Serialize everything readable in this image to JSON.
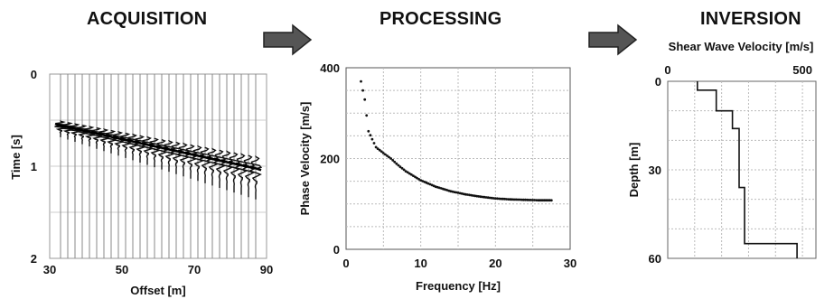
{
  "stages": [
    {
      "title": "ACQUISITION"
    },
    {
      "title": "PROCESSING"
    },
    {
      "title": "INVERSION"
    }
  ],
  "arrow_color": "#555555",
  "chart_data": [
    {
      "type": "scatter",
      "title": "",
      "xlabel": "Offset [m]",
      "ylabel": "Time [s]",
      "xlim": [
        30,
        90
      ],
      "ylim": [
        2,
        0
      ],
      "x_ticks": [
        "30",
        "50",
        "70",
        "90"
      ],
      "y_ticks": [
        "0",
        "1",
        "2"
      ],
      "traces": {
        "count": 28,
        "x_start": 33,
        "x_step": 2
      },
      "arrival": {
        "x": [
          33,
          89
        ],
        "y": [
          0.56,
          1.04
        ]
      },
      "grid": true
    },
    {
      "type": "scatter",
      "title": "",
      "xlabel": "Frequency [Hz]",
      "ylabel": "Phase Velocity [m/s]",
      "xlim": [
        0,
        30
      ],
      "ylim": [
        0,
        400
      ],
      "x_ticks": [
        "0",
        "10",
        "20",
        "30"
      ],
      "y_ticks": [
        "0",
        "200",
        "400"
      ],
      "x": [
        2,
        2.5,
        3,
        4,
        5,
        6,
        7,
        8,
        10,
        12,
        14,
        16,
        18,
        20,
        22,
        24,
        26,
        27.5
      ],
      "y": [
        370,
        330,
        260,
        225,
        212,
        200,
        185,
        172,
        152,
        138,
        128,
        121,
        116,
        112,
        110,
        109,
        108,
        108
      ],
      "grid": true
    },
    {
      "type": "line",
      "title": "Shear Wave Velocity [m/s]",
      "xlabel": "",
      "ylabel": "Depth [m]",
      "xlim": [
        0,
        550
      ],
      "ylim": [
        60,
        0
      ],
      "x_ticks": [
        "0",
        "500"
      ],
      "y_ticks": [
        "0",
        "30",
        "60"
      ],
      "x": [
        110,
        110,
        180,
        180,
        240,
        240,
        265,
        265,
        285,
        285,
        480,
        480
      ],
      "y": [
        0,
        3,
        3,
        10,
        10,
        16,
        16,
        36,
        36,
        55,
        55,
        60
      ],
      "grid": true
    }
  ]
}
